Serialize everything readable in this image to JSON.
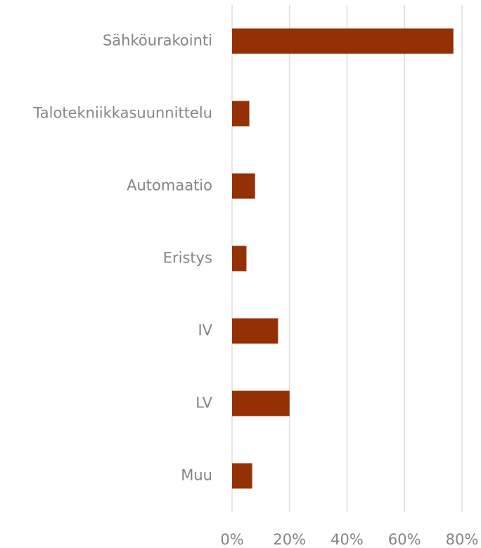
{
  "chart_data": {
    "type": "bar",
    "orientation": "horizontal",
    "categories": [
      "Sähköurakointi",
      "Talotekniikkasuunnittelu",
      "Automaatio",
      "Eristys",
      "IV",
      "LV",
      "Muu"
    ],
    "values": [
      77,
      6,
      8,
      5,
      16,
      20,
      7
    ],
    "color": "#933104",
    "xlim": [
      0,
      80
    ],
    "xticks": [
      {
        "value": 0,
        "label": "0%"
      },
      {
        "value": 20,
        "label": "20%"
      },
      {
        "value": 40,
        "label": "40%"
      },
      {
        "value": 60,
        "label": "60%"
      },
      {
        "value": 80,
        "label": "80%"
      }
    ],
    "grid": true
  }
}
